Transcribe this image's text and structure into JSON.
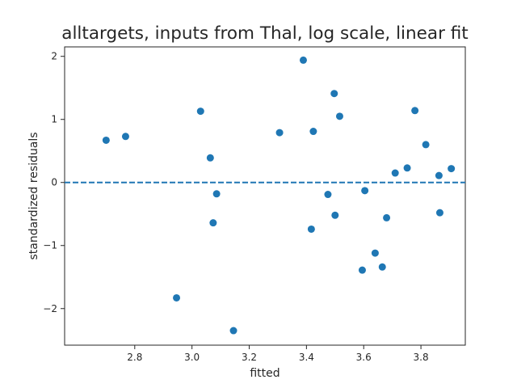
{
  "chart_data": {
    "type": "scatter",
    "title": "alltargets, inputs from Thal, log scale, linear fit",
    "xlabel": "fitted",
    "ylabel": "standardized residuals",
    "xlim": [
      2.555,
      3.955
    ],
    "ylim": [
      -2.58,
      2.15
    ],
    "xticks": [
      2.8,
      3.0,
      3.2,
      3.4,
      3.6,
      3.8
    ],
    "xtick_labels": [
      "2.8",
      "3.0",
      "3.2",
      "3.4",
      "3.6",
      "3.8"
    ],
    "yticks": [
      -2,
      -1,
      0,
      1,
      2
    ],
    "ytick_labels": [
      "−2",
      "−1",
      "0",
      "1",
      "2"
    ],
    "grid": false,
    "reference_line": {
      "y": 0,
      "style": "dashed",
      "color": "#1f77b4"
    },
    "point_color": "#1f77b4",
    "series": [
      {
        "points": [
          [
            2.7,
            0.67
          ],
          [
            2.768,
            0.73
          ],
          [
            2.946,
            -1.83
          ],
          [
            3.03,
            1.13
          ],
          [
            3.064,
            0.39
          ],
          [
            3.074,
            -0.64
          ],
          [
            3.086,
            -0.18
          ],
          [
            3.145,
            -2.35
          ],
          [
            3.306,
            0.79
          ],
          [
            3.389,
            1.94
          ],
          [
            3.417,
            -0.74
          ],
          [
            3.424,
            0.81
          ],
          [
            3.475,
            -0.19
          ],
          [
            3.497,
            1.41
          ],
          [
            3.5,
            -0.52
          ],
          [
            3.516,
            1.05
          ],
          [
            3.595,
            -1.39
          ],
          [
            3.604,
            -0.13
          ],
          [
            3.64,
            -1.12
          ],
          [
            3.665,
            -1.34
          ],
          [
            3.68,
            -0.56
          ],
          [
            3.71,
            0.15
          ],
          [
            3.752,
            0.23
          ],
          [
            3.779,
            1.14
          ],
          [
            3.817,
            0.6
          ],
          [
            3.863,
            0.11
          ],
          [
            3.866,
            -0.48
          ],
          [
            3.906,
            0.22
          ]
        ]
      }
    ]
  }
}
